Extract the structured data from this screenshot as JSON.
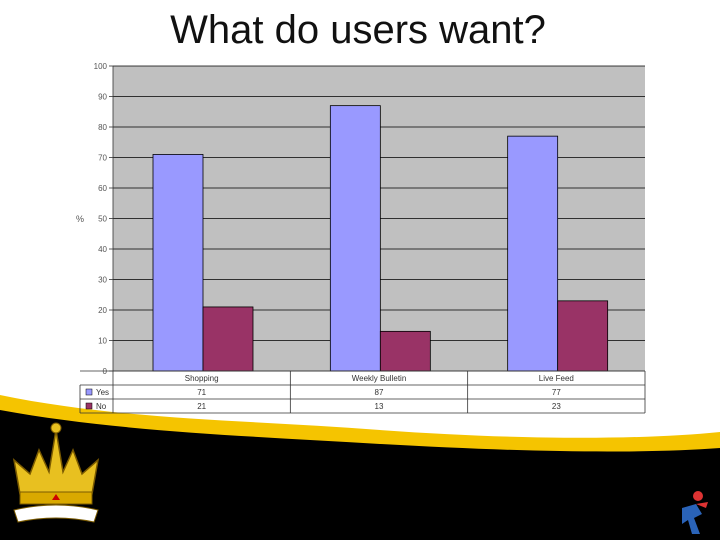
{
  "slide": {
    "title": "What do users want?"
  },
  "chart_data": {
    "type": "bar",
    "title": "",
    "xlabel": "",
    "ylabel": "%",
    "ylim": [
      0,
      100
    ],
    "yticks": [
      "0",
      "10",
      "20",
      "30",
      "40",
      "50",
      "60",
      "70",
      "80",
      "90",
      "100"
    ],
    "categories": [
      "Shopping",
      "Weekly Bulletin",
      "Live Feed"
    ],
    "series": [
      {
        "name": "Yes",
        "color": "#9999ff",
        "values": [
          71,
          87,
          77
        ]
      },
      {
        "name": "No",
        "color": "#993366",
        "values": [
          21,
          13,
          23
        ]
      }
    ],
    "table": {
      "rows": [
        {
          "label": "Yes",
          "values": [
            "71",
            "87",
            "77"
          ]
        },
        {
          "label": "No",
          "values": [
            "21",
            "13",
            "23"
          ]
        }
      ]
    },
    "grid": true,
    "legend": "data-table"
  },
  "colors": {
    "plot_bg": "#c0c0c0",
    "wave": "#f5c400",
    "footer": "#000000"
  },
  "icons": [
    "crown-logo",
    "runner-icon"
  ]
}
